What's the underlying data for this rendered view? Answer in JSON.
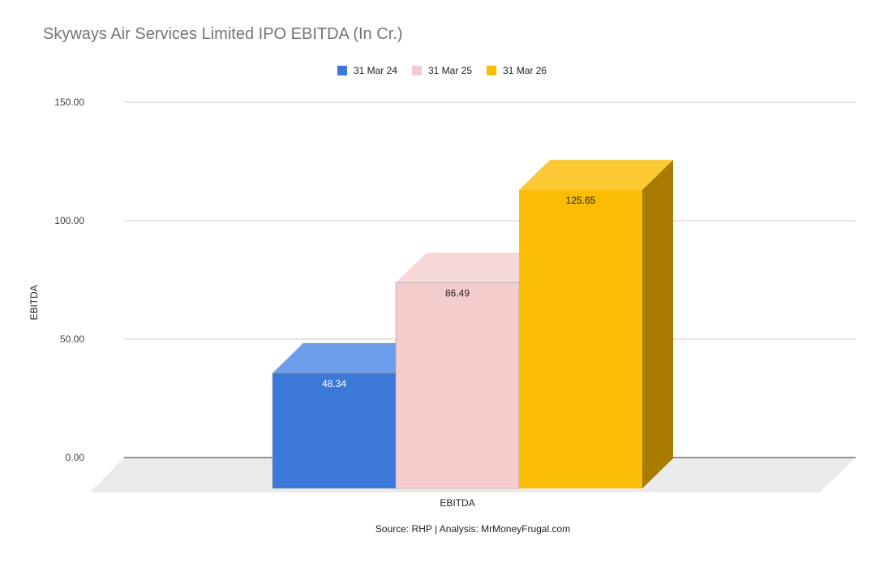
{
  "chart_data": {
    "type": "bar",
    "title": "Skyways Air Services Limited IPO EBITDA (In Cr.)",
    "categories": [
      "EBITDA"
    ],
    "series": [
      {
        "name": "31 Mar 24",
        "values": [
          48.34
        ],
        "color": "#3c78d8",
        "top_color": "#6d9eeb",
        "side_color": "#2d5aa2",
        "label_color": "#ffffff"
      },
      {
        "name": "31 Mar 25",
        "values": [
          86.49
        ],
        "color": "#f4cccc",
        "top_color": "#f6d8d8",
        "side_color": "#b79999",
        "label_color": "#222222"
      },
      {
        "name": "31 Mar 26",
        "values": [
          125.65
        ],
        "color": "#fbbc04",
        "top_color": "#fcc934",
        "side_color": "#a77c00",
        "label_color": "#222222"
      }
    ],
    "data_labels": [
      "48.34",
      "86.49",
      "125.65"
    ],
    "yticks": [
      "0.00",
      "50.00",
      "100.00",
      "150.00"
    ],
    "ylim": [
      0,
      150
    ],
    "ylabel": "EBITDA",
    "xlabel": "EBITDA",
    "legend_position": "top",
    "grid": true,
    "style": "3d"
  },
  "footer": {
    "source": "Source: RHP | Analysis: MrMoneyFrugal.com"
  }
}
